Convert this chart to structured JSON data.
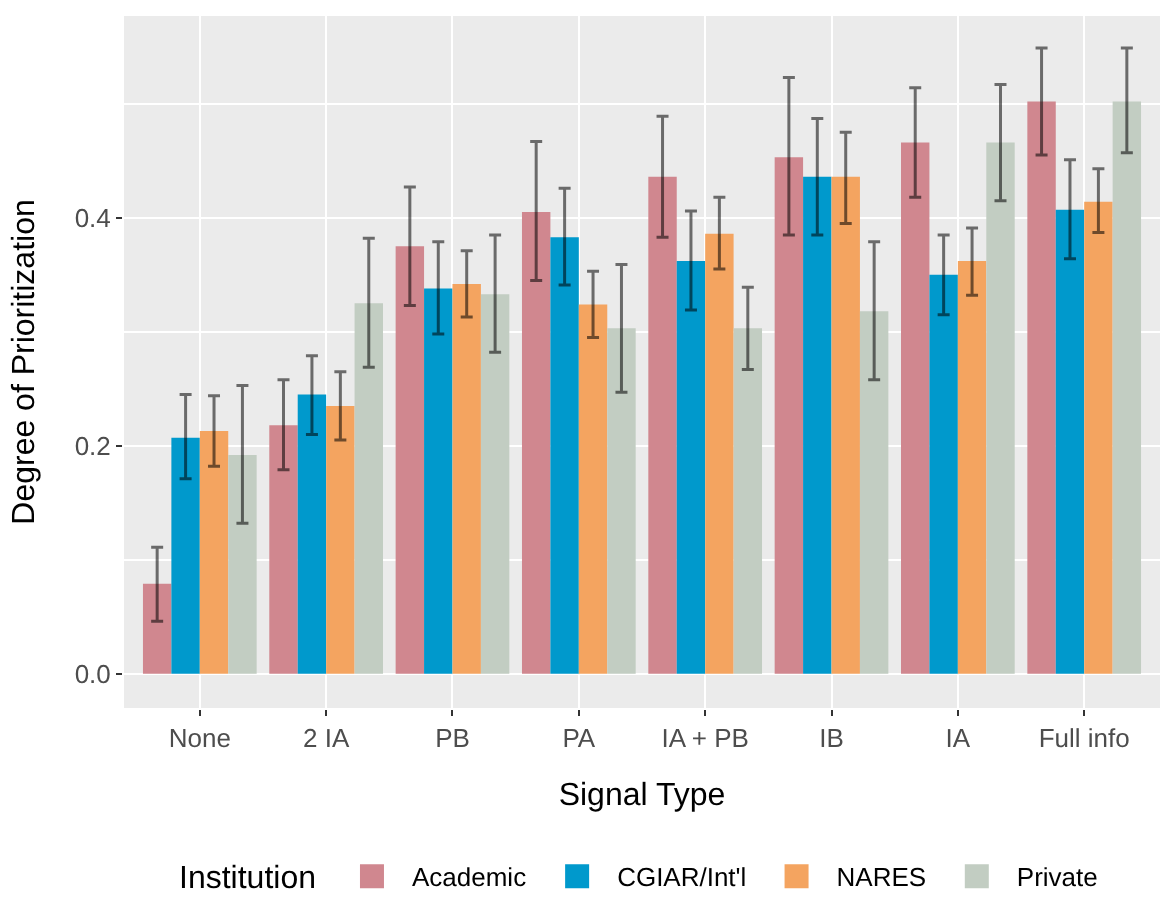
{
  "chart_data": {
    "type": "bar",
    "xlabel": "Signal Type",
    "ylabel": "Degree of Prioritization",
    "legend_title": "Institution",
    "legend": "bottom",
    "grid": true,
    "categories": [
      "None",
      "2 IA",
      "PB",
      "PA",
      "IA + PB",
      "IB",
      "IA",
      "Full info"
    ],
    "ylim": [
      -0.03,
      0.577
    ],
    "yticks": [
      {
        "value": 0,
        "label": "0.0"
      },
      {
        "value": 0.2,
        "label": "0.2"
      },
      {
        "value": 0.4,
        "label": "0.4"
      }
    ],
    "series": [
      {
        "name": "Academic",
        "color": "#d0878f",
        "values": [
          0.079,
          0.218,
          0.375,
          0.405,
          0.436,
          0.453,
          0.466,
          0.502
        ],
        "errors": [
          [
            0.046,
            0.111
          ],
          [
            0.179,
            0.258
          ],
          [
            0.323,
            0.427
          ],
          [
            0.345,
            0.467
          ],
          [
            0.383,
            0.489
          ],
          [
            0.385,
            0.523
          ],
          [
            0.418,
            0.514
          ],
          [
            0.455,
            0.549
          ]
        ]
      },
      {
        "name": "CGIAR/Int'l",
        "color": "#0099cc",
        "values": [
          0.207,
          0.245,
          0.338,
          0.383,
          0.362,
          0.436,
          0.35,
          0.407
        ],
        "errors": [
          [
            0.171,
            0.245
          ],
          [
            0.21,
            0.279
          ],
          [
            0.298,
            0.379
          ],
          [
            0.341,
            0.426
          ],
          [
            0.319,
            0.406
          ],
          [
            0.385,
            0.487
          ],
          [
            0.315,
            0.385
          ],
          [
            0.364,
            0.451
          ]
        ]
      },
      {
        "name": "NARES",
        "color": "#f4a460",
        "values": [
          0.213,
          0.235,
          0.342,
          0.324,
          0.386,
          0.436,
          0.362,
          0.414
        ],
        "errors": [
          [
            0.182,
            0.244
          ],
          [
            0.205,
            0.265
          ],
          [
            0.313,
            0.371
          ],
          [
            0.295,
            0.353
          ],
          [
            0.355,
            0.418
          ],
          [
            0.395,
            0.475
          ],
          [
            0.332,
            0.391
          ],
          [
            0.387,
            0.443
          ]
        ]
      },
      {
        "name": "Private",
        "color": "#c2cdc2",
        "values": [
          0.192,
          0.325,
          0.333,
          0.303,
          0.303,
          0.318,
          0.466,
          0.502
        ],
        "errors": [
          [
            0.132,
            0.253
          ],
          [
            0.269,
            0.382
          ],
          [
            0.282,
            0.385
          ],
          [
            0.247,
            0.359
          ],
          [
            0.267,
            0.339
          ],
          [
            0.258,
            0.379
          ],
          [
            0.415,
            0.517
          ],
          [
            0.457,
            0.549
          ]
        ]
      }
    ]
  }
}
